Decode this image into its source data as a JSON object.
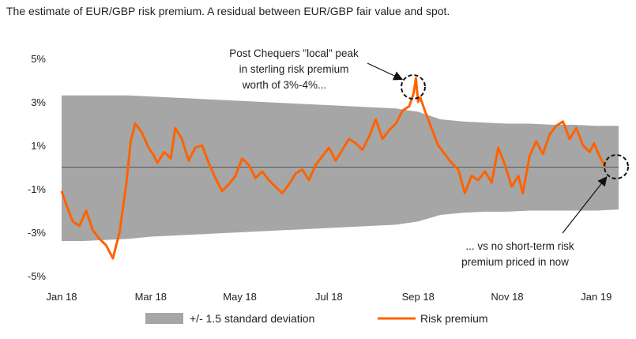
{
  "title": "The estimate of EUR/GBP risk premium. A residual between EUR/GBP fair value and spot.",
  "chart_data": {
    "type": "line",
    "title": "The estimate of EUR/GBP risk premium. A residual between EUR/GBP fair value and spot.",
    "xlabel": "",
    "ylabel": "",
    "ylim": [
      -5,
      5
    ],
    "yticks": [
      "5%",
      "3%",
      "1%",
      "-1%",
      "-3%",
      "-5%"
    ],
    "ytick_values": [
      5,
      3,
      1,
      -1,
      -3,
      -5
    ],
    "xticks": [
      "Jan 18",
      "Mar 18",
      "May 18",
      "Jul 18",
      "Sep 18",
      "Nov 18",
      "Jan 19"
    ],
    "xtick_values": [
      0,
      2,
      4,
      6,
      8,
      10,
      12
    ],
    "x_unit": "months since Jan 18",
    "grid": false,
    "legend_position": "bottom",
    "colors": {
      "band": "#a6a6a6",
      "line": "#ff6200",
      "zero": "#555555"
    },
    "band": {
      "name": "+/- 1.5 standard deviation",
      "x": [
        0,
        0.5,
        1.0,
        1.5,
        2.0,
        2.5,
        3.0,
        3.5,
        4.0,
        4.5,
        5.0,
        5.5,
        6.0,
        6.5,
        7.0,
        7.5,
        8.0,
        8.5,
        9.0,
        9.5,
        10.0,
        10.5,
        11.0,
        11.5,
        12.0,
        12.5
      ],
      "upper": [
        3.3,
        3.3,
        3.3,
        3.3,
        3.25,
        3.2,
        3.15,
        3.1,
        3.05,
        3.0,
        2.95,
        2.9,
        2.85,
        2.8,
        2.75,
        2.7,
        2.55,
        2.2,
        2.1,
        2.05,
        2.0,
        2.0,
        1.95,
        1.95,
        1.9,
        1.9
      ],
      "lower": [
        -3.4,
        -3.4,
        -3.35,
        -3.3,
        -3.2,
        -3.15,
        -3.1,
        -3.05,
        -3.0,
        -2.95,
        -2.9,
        -2.85,
        -2.8,
        -2.75,
        -2.7,
        -2.65,
        -2.5,
        -2.2,
        -2.1,
        -2.05,
        -2.05,
        -2.0,
        -2.0,
        -2.0,
        -2.0,
        -1.95
      ]
    },
    "series": [
      {
        "name": "Risk premium",
        "x": [
          0,
          0.1,
          0.25,
          0.4,
          0.55,
          0.7,
          0.85,
          1.0,
          1.15,
          1.3,
          1.45,
          1.55,
          1.65,
          1.8,
          1.95,
          2.05,
          2.15,
          2.3,
          2.45,
          2.55,
          2.7,
          2.85,
          3.0,
          3.15,
          3.3,
          3.45,
          3.6,
          3.75,
          3.9,
          4.05,
          4.2,
          4.35,
          4.5,
          4.65,
          4.8,
          4.95,
          5.1,
          5.25,
          5.4,
          5.55,
          5.7,
          5.85,
          6.0,
          6.15,
          6.3,
          6.45,
          6.6,
          6.75,
          6.9,
          7.05,
          7.2,
          7.35,
          7.5,
          7.65,
          7.8,
          7.9,
          7.95,
          8.0,
          8.05,
          8.15,
          8.3,
          8.45,
          8.6,
          8.75,
          8.9,
          9.05,
          9.2,
          9.35,
          9.5,
          9.65,
          9.8,
          9.95,
          10.1,
          10.25,
          10.35,
          10.5,
          10.65,
          10.8,
          10.95,
          11.1,
          11.25,
          11.4,
          11.55,
          11.7,
          11.85,
          11.95,
          12.05,
          12.2
        ],
        "values": [
          -1.1,
          -1.7,
          -2.5,
          -2.7,
          -2.0,
          -2.9,
          -3.3,
          -3.6,
          -4.2,
          -3.0,
          -0.8,
          1.2,
          2.0,
          1.6,
          0.9,
          0.6,
          0.2,
          0.7,
          0.4,
          1.8,
          1.3,
          0.3,
          0.9,
          1.0,
          0.2,
          -0.5,
          -1.1,
          -0.8,
          -0.4,
          0.4,
          0.1,
          -0.5,
          -0.2,
          -0.6,
          -0.9,
          -1.2,
          -0.8,
          -0.3,
          -0.1,
          -0.6,
          0.1,
          0.5,
          0.9,
          0.3,
          0.8,
          1.3,
          1.1,
          0.8,
          1.4,
          2.2,
          1.3,
          1.7,
          2.0,
          2.6,
          2.8,
          3.4,
          4.1,
          3.0,
          3.2,
          2.6,
          1.8,
          1.0,
          0.6,
          0.2,
          -0.1,
          -1.2,
          -0.4,
          -0.6,
          -0.2,
          -0.7,
          0.9,
          0.1,
          -0.9,
          -0.4,
          -1.2,
          0.5,
          1.2,
          0.6,
          1.5,
          1.9,
          2.1,
          1.3,
          1.8,
          1.0,
          0.7,
          1.1,
          0.6,
          0.0
        ]
      }
    ],
    "annotations": [
      {
        "lines": [
          "Post Chequers \"local\" peak",
          "in sterling risk premium",
          "worth of 3%-4%..."
        ]
      },
      {
        "lines": [
          "... vs no short-term risk",
          "premium priced in now"
        ]
      }
    ],
    "legend": [
      "+/- 1.5 standard deviation",
      "Risk premium"
    ]
  }
}
